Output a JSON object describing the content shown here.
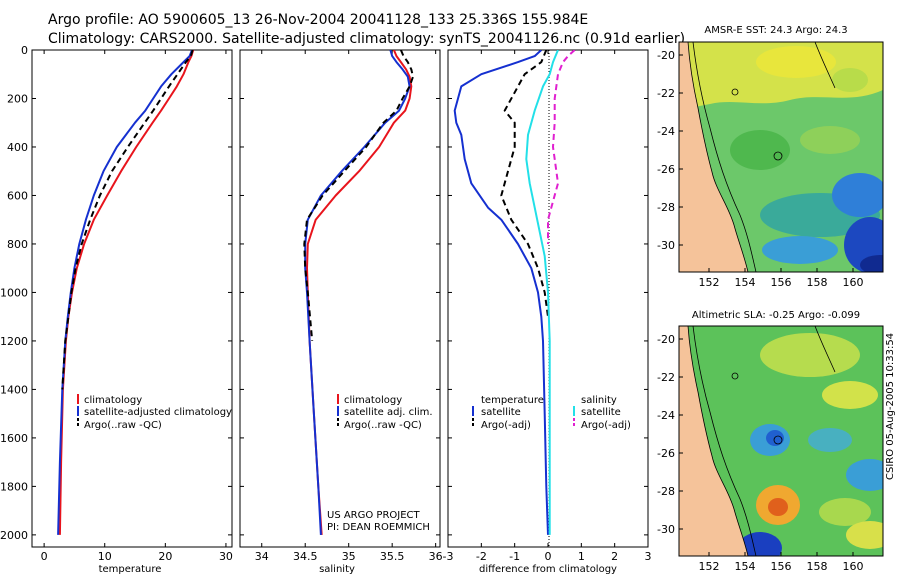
{
  "header": {
    "title_line1": "Argo profile: AO 5900605_13 26-Nov-2004 20041128_133 25.336S 155.984E",
    "title_line2": "Climatology: CARS2000. Satellite-adjusted climatology: synTS_20041126.nc (0.91d earlier)"
  },
  "colors": {
    "climatology": "#e8141c",
    "satellite": "#1530d0",
    "argo": "#000000",
    "salinity_sat": "#22e0e8",
    "salinity_argo": "#e020d0",
    "land": "#f5c39a"
  },
  "chart_data": [
    {
      "type": "line",
      "name": "temperature-panel",
      "xlabel": "temperature",
      "xlim": [
        -2,
        31
      ],
      "ylim": [
        2050,
        0
      ],
      "xticks": [
        0,
        10,
        20,
        30
      ],
      "xticklabels": [
        "0",
        "10",
        "20",
        "30"
      ],
      "yticks": [
        0,
        200,
        400,
        600,
        800,
        1000,
        1200,
        1400,
        1600,
        1800,
        2000
      ],
      "yticklabels": [
        "0",
        "200",
        "400",
        "600",
        "800",
        "1000",
        "1200",
        "1400",
        "1600",
        "1800",
        "2000"
      ],
      "legend": [
        "climatology",
        "satellite-adjusted climatology",
        "Argo(..raw -QC)"
      ],
      "series": [
        {
          "name": "climatology",
          "style": "solid",
          "color": "#e8141c",
          "x": [
            24.6,
            24.3,
            23.8,
            23.0,
            21.9,
            20.6,
            19.3,
            17.9,
            15.2,
            12.7,
            10.4,
            8.2,
            6.6,
            5.4,
            4.6,
            4.0,
            3.6,
            3.1,
            2.8,
            2.6
          ],
          "y": [
            0,
            25,
            50,
            100,
            150,
            200,
            250,
            300,
            400,
            500,
            600,
            700,
            800,
            900,
            1000,
            1100,
            1200,
            1400,
            1700,
            2000
          ]
        },
        {
          "name": "satellite-adjusted climatology",
          "style": "solid",
          "color": "#1530d0",
          "x": [
            24.4,
            24.0,
            23.0,
            21.0,
            19.3,
            18.0,
            16.7,
            15.0,
            12.0,
            9.8,
            8.2,
            6.9,
            5.8,
            5.0,
            4.4,
            3.9,
            3.5,
            3.0,
            2.6,
            2.3
          ],
          "y": [
            0,
            25,
            50,
            100,
            150,
            200,
            250,
            300,
            400,
            500,
            600,
            700,
            800,
            900,
            1000,
            1100,
            1200,
            1400,
            1700,
            2000
          ]
        },
        {
          "name": "Argo(..raw -QC)",
          "style": "dashed",
          "color": "#000000",
          "x": [
            24.5,
            24.2,
            23.4,
            22.0,
            20.6,
            19.3,
            18.0,
            16.6,
            13.8,
            11.2,
            9.2,
            7.6,
            6.2,
            5.2,
            4.5,
            4.0,
            3.5,
            3.0
          ],
          "y": [
            0,
            25,
            50,
            100,
            150,
            200,
            250,
            300,
            400,
            500,
            600,
            700,
            800,
            900,
            1000,
            1100,
            1200,
            1400
          ]
        }
      ]
    },
    {
      "type": "line",
      "name": "salinity-panel",
      "xlabel": "salinity",
      "xlim": [
        33.75,
        36.05
      ],
      "ylim": [
        2050,
        0
      ],
      "xticks": [
        34,
        34.5,
        35,
        35.5,
        36
      ],
      "xticklabels": [
        "34",
        "34.5",
        "35",
        "35.5",
        "36"
      ],
      "legend": [
        "climatology",
        "satellite adj. clim.",
        "Argo(..raw -QC)"
      ],
      "series": [
        {
          "name": "climatology",
          "style": "solid",
          "color": "#e8141c",
          "x": [
            35.52,
            35.55,
            35.6,
            35.66,
            35.7,
            35.72,
            35.7,
            35.65,
            35.52,
            35.35,
            35.12,
            34.85,
            34.62,
            34.53,
            34.52,
            34.53,
            34.55,
            34.6,
            34.65,
            34.69
          ],
          "y": [
            0,
            25,
            50,
            80,
            110,
            150,
            200,
            250,
            300,
            400,
            500,
            600,
            700,
            800,
            900,
            1000,
            1200,
            1500,
            1800,
            2000
          ]
        },
        {
          "name": "satellite adj. clim.",
          "style": "solid",
          "color": "#1530d0",
          "x": [
            35.48,
            35.5,
            35.55,
            35.62,
            35.68,
            35.7,
            35.65,
            35.58,
            35.42,
            35.18,
            34.92,
            34.68,
            34.53,
            34.5,
            34.5,
            34.52,
            34.55,
            34.6,
            34.65,
            34.68
          ],
          "y": [
            0,
            25,
            50,
            80,
            110,
            150,
            200,
            250,
            300,
            400,
            500,
            600,
            700,
            800,
            900,
            1000,
            1200,
            1500,
            1800,
            2000
          ]
        },
        {
          "name": "Argo(..raw -QC)",
          "style": "dashed",
          "color": "#000000",
          "x": [
            35.6,
            35.63,
            35.68,
            35.72,
            35.74,
            35.7,
            35.62,
            35.55,
            35.4,
            35.2,
            34.95,
            34.7,
            34.52,
            34.49,
            34.5,
            34.53,
            34.58
          ],
          "y": [
            0,
            25,
            50,
            80,
            110,
            150,
            200,
            250,
            300,
            400,
            500,
            600,
            700,
            800,
            900,
            1000,
            1200
          ]
        }
      ]
    },
    {
      "type": "line",
      "name": "difference-panel",
      "xlabel": "difference from climatology",
      "xlim": [
        -3,
        3
      ],
      "ylim": [
        2050,
        0
      ],
      "xticks": [
        -3,
        -2,
        -1,
        0,
        1,
        2,
        3
      ],
      "xticklabels": [
        "-3",
        "-2",
        "-1",
        "0",
        "1",
        "2",
        "3"
      ],
      "legend_left_title": "temperature",
      "legend_left": [
        "satellite",
        "Argo(-adj)"
      ],
      "legend_right_title": "salinity",
      "legend_right": [
        "satellite",
        "Argo(-adj)"
      ],
      "series": [
        {
          "name": "temperature satellite",
          "style": "solid",
          "color": "#1530d0",
          "x": [
            -0.2,
            -0.4,
            -0.9,
            -2.0,
            -2.6,
            -2.8,
            -2.75,
            -2.6,
            -2.5,
            -2.3,
            -1.8,
            -1.4,
            -0.9,
            -0.5,
            -0.3,
            -0.2,
            -0.15,
            -0.1,
            -0.05,
            0.0
          ],
          "y": [
            0,
            25,
            50,
            100,
            150,
            250,
            300,
            350,
            450,
            550,
            650,
            700,
            800,
            900,
            1000,
            1100,
            1200,
            1500,
            1800,
            2000
          ]
        },
        {
          "name": "temperature Argo(-adj)",
          "style": "dashed",
          "color": "#000000",
          "x": [
            -0.05,
            -0.2,
            -0.7,
            -0.9,
            -1.3,
            -1.0,
            -1.0,
            -1.2,
            -1.4,
            -1.1,
            -0.6,
            -0.3,
            -0.1,
            0.0
          ],
          "y": [
            0,
            50,
            100,
            150,
            250,
            300,
            400,
            500,
            600,
            700,
            800,
            900,
            1000,
            1100
          ]
        },
        {
          "name": "salinity satellite",
          "style": "solid",
          "color": "#22e0e8",
          "x": [
            0.3,
            0.15,
            0.05,
            -0.15,
            -0.4,
            -0.6,
            -0.65,
            -0.55,
            -0.4,
            -0.25,
            -0.1,
            0.0,
            0.05,
            0.05,
            0.05,
            0.05
          ],
          "y": [
            0,
            50,
            100,
            150,
            250,
            350,
            450,
            550,
            650,
            750,
            850,
            1000,
            1200,
            1500,
            1800,
            2000
          ]
        },
        {
          "name": "salinity Argo(-adj)",
          "style": "dashed",
          "color": "#e020d0",
          "x": [
            0.8,
            0.6,
            0.45,
            0.3,
            0.2,
            0.2,
            0.15,
            0.2,
            0.3,
            0.1,
            0.0,
            0.0
          ],
          "y": [
            0,
            25,
            50,
            100,
            200,
            300,
            400,
            450,
            550,
            650,
            700,
            800
          ]
        }
      ]
    }
  ],
  "stamp": {
    "project_line1": "US ARGO PROJECT",
    "project_line2": "PI: DEAN ROEMMICH",
    "side": "CSIRO 05-Aug-2005 10:33:54"
  },
  "maps": [
    {
      "title": "AMSR-E SST: 24.3 Argo: 24.3",
      "xticks": [
        "152",
        "154",
        "156",
        "158",
        "160"
      ],
      "yticks": [
        "-20",
        "-22",
        "-24",
        "-26",
        "-28",
        "-30"
      ]
    },
    {
      "title": "Altimetric SLA: -0.25 Argo: -0.099",
      "xticks": [
        "152",
        "154",
        "156",
        "158",
        "160"
      ],
      "yticks": [
        "-20",
        "-22",
        "-24",
        "-26",
        "-28",
        "-30"
      ]
    }
  ]
}
